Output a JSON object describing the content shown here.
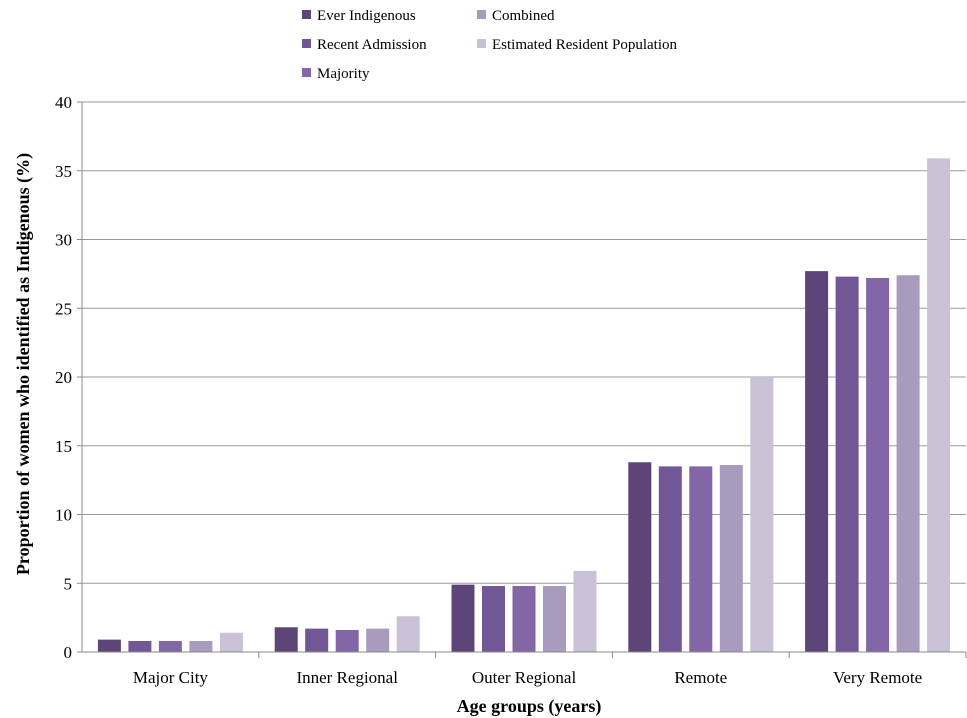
{
  "chart_data": {
    "type": "bar",
    "title": "",
    "xlabel": "Age groups (years)",
    "ylabel": "Proportion of women who identified as Indigenous (%)",
    "categories": [
      "Major City",
      "Inner Regional",
      "Outer Regional",
      "Remote",
      "Very Remote"
    ],
    "ylim": [
      0,
      40
    ],
    "yticks": [
      0,
      5,
      10,
      15,
      20,
      25,
      30,
      35,
      40
    ],
    "grid": true,
    "legend_position": "top",
    "series": [
      {
        "name": "Ever Indigenous",
        "color": "#5e4578",
        "values": [
          0.9,
          1.8,
          4.9,
          13.8,
          27.7
        ]
      },
      {
        "name": "Recent Admission",
        "color": "#715795",
        "values": [
          0.8,
          1.7,
          4.8,
          13.5,
          27.3
        ]
      },
      {
        "name": "Majority",
        "color": "#8366a6",
        "values": [
          0.8,
          1.6,
          4.8,
          13.5,
          27.2
        ]
      },
      {
        "name": "Combined",
        "color": "#a99bbd",
        "values": [
          0.8,
          1.7,
          4.8,
          13.6,
          27.4
        ]
      },
      {
        "name": "Estimated Resident Population",
        "color": "#c9c1d6",
        "values": [
          1.4,
          2.6,
          5.9,
          20.0,
          35.9
        ]
      }
    ]
  }
}
